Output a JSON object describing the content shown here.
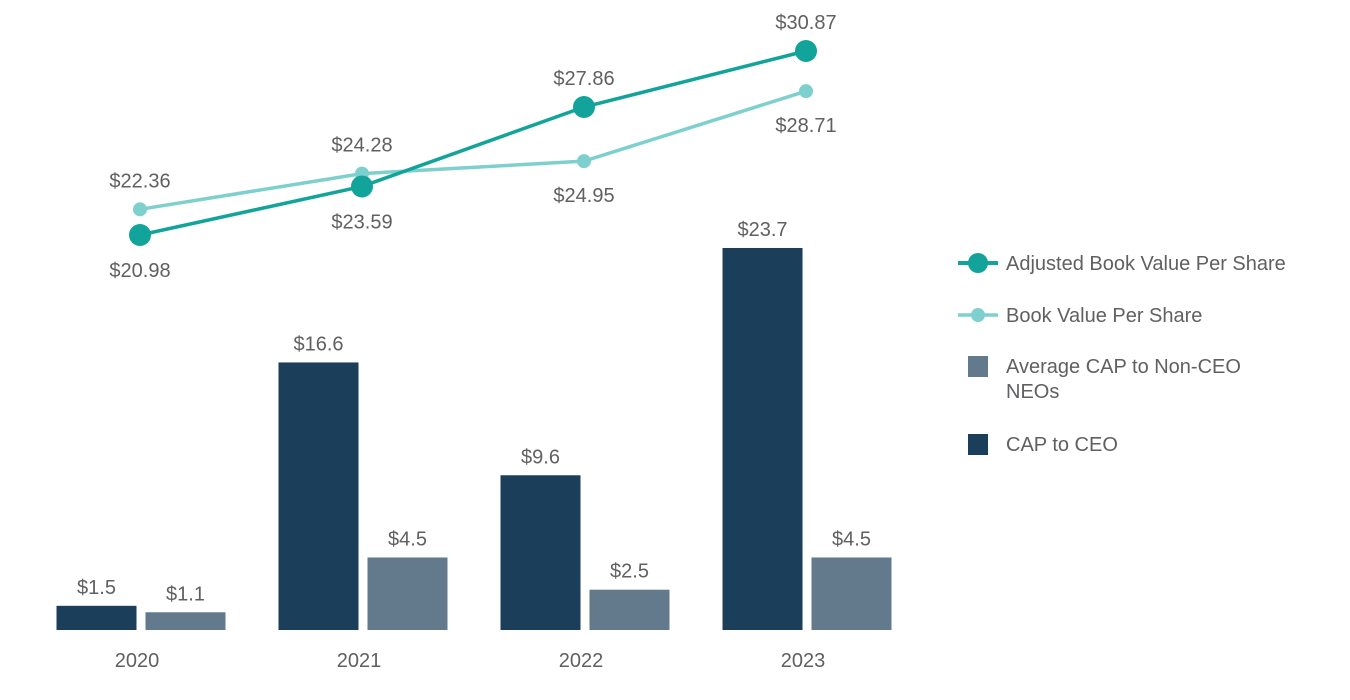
{
  "chart_data": {
    "type": "bar",
    "categories": [
      "2020",
      "2021",
      "2022",
      "2023"
    ],
    "bar_series": [
      {
        "name": "CAP to CEO",
        "values": [
          1.5,
          16.6,
          9.6,
          23.7
        ],
        "labels": [
          "$1.5",
          "$16.6",
          "$9.6",
          "$23.7"
        ],
        "color": "#1b3f5a"
      },
      {
        "name": "Average CAP to Non-CEO NEOs",
        "values": [
          1.1,
          4.5,
          2.5,
          4.5
        ],
        "labels": [
          "$1.1",
          "$4.5",
          "$2.5",
          "$4.5"
        ],
        "color": "#627a8c"
      }
    ],
    "line_series": [
      {
        "name": "Adjusted Book Value Per Share",
        "values": [
          20.98,
          23.59,
          27.86,
          30.87
        ],
        "labels": [
          "$20.98",
          "$23.59",
          "$27.86",
          "$30.87"
        ],
        "color": "#12a39a"
      },
      {
        "name": "Book Value Per Share",
        "values": [
          22.36,
          24.28,
          24.95,
          28.71
        ],
        "labels": [
          "$22.36",
          "$24.28",
          "$24.95",
          "$28.71"
        ],
        "color": "#7ed0ce"
      }
    ],
    "legend": {
      "items": [
        {
          "label": "Adjusted Book Value Per Share",
          "kind": "line-large",
          "color": "#12a39a"
        },
        {
          "label": "Book Value Per Share",
          "kind": "line-small",
          "color": "#7ed0ce"
        },
        {
          "label_lines": [
            "Average CAP to Non-CEO",
            "NEOs"
          ],
          "kind": "box",
          "color": "#627a8c"
        },
        {
          "label": "CAP to CEO",
          "kind": "box",
          "color": "#1b3f5a"
        }
      ],
      "placement": "right"
    },
    "bar_ylim": [
      0,
      26
    ],
    "line_ylim": [
      19.5,
      31.5
    ],
    "title": "",
    "xlabel": "",
    "ylabel": ""
  }
}
